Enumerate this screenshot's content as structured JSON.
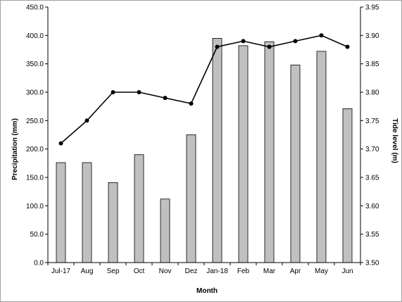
{
  "chart_data": {
    "type": "bar",
    "categories": [
      "Jul-17",
      "Aug",
      "Sep",
      "Oct",
      "Nov",
      "Dez",
      "Jan-18",
      "Feb",
      "Mar",
      "Apr",
      "May",
      "Jun"
    ],
    "series": [
      {
        "type": "bar",
        "axis": "left",
        "values": [
          176,
          176,
          141,
          190,
          112,
          225,
          395,
          382,
          389,
          348,
          372,
          271
        ],
        "color": "#c0c0c0"
      },
      {
        "type": "line",
        "axis": "right",
        "values": [
          3.71,
          3.75,
          3.8,
          3.8,
          3.79,
          3.78,
          3.88,
          3.89,
          3.88,
          3.89,
          3.9,
          3.88
        ],
        "color": "#000000"
      }
    ],
    "xlabel": "Month",
    "ylabel": "Precipitation (mm)",
    "y2label": "Tide level (m)",
    "ylim": [
      0,
      450
    ],
    "y2lim": [
      3.5,
      3.95
    ],
    "yticks": [
      "0.0",
      "50.0",
      "100.0",
      "150.0",
      "200.0",
      "250.0",
      "300.0",
      "350.0",
      "400.0",
      "450.0"
    ],
    "y2ticks": [
      "3.50",
      "3.55",
      "3.60",
      "3.65",
      "3.70",
      "3.75",
      "3.80",
      "3.85",
      "3.90",
      "3.95"
    ],
    "grid": false,
    "legend": "none"
  }
}
